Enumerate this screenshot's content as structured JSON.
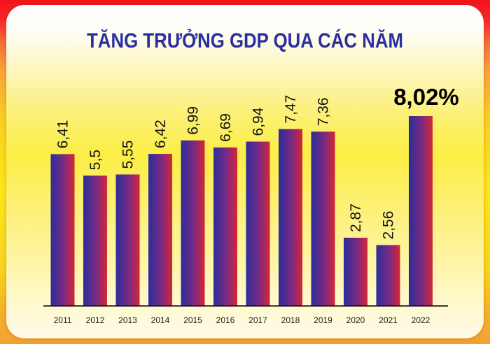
{
  "chart_data": {
    "type": "bar",
    "title": "TĂNG TRƯỞNG GDP QUA CÁC NĂM",
    "categories": [
      "2011",
      "2012",
      "2013",
      "2014",
      "2015",
      "2016",
      "2017",
      "2018",
      "2019",
      "2020",
      "2021",
      "2022"
    ],
    "values": [
      6.41,
      5.5,
      5.55,
      6.42,
      6.99,
      6.69,
      6.94,
      7.47,
      7.36,
      2.87,
      2.56,
      8.02
    ],
    "data_labels": [
      "6,41",
      "5,5",
      "5,55",
      "6,42",
      "6,99",
      "6,69",
      "6,94",
      "7,47",
      "7,36",
      "2,87",
      "2,56",
      "8,02%"
    ],
    "highlight_index": 11,
    "ylim": [
      0,
      8.02
    ],
    "grid": false,
    "legend": "none",
    "colors": {
      "bar_left": "#2b2d9b",
      "bar_mid": "#7a2a82",
      "bar_right": "#d62637",
      "axis": "#111111",
      "title": "#2a2fa0"
    }
  }
}
